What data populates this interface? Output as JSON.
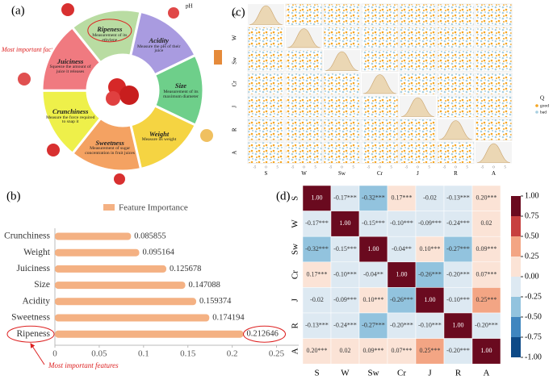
{
  "diagram": {
    "label": "(a)",
    "annotation": "Most important factor",
    "ph_label": "pH",
    "segments": [
      {
        "title": "Ripeness",
        "text": "Measurement of its ethylene"
      },
      {
        "title": "Acidity",
        "text": "Measure the pH of their juice"
      },
      {
        "title": "Size",
        "text": "Measurement of its maximum diameter"
      },
      {
        "title": "Weight",
        "text": "Measure its weight"
      },
      {
        "title": "Sweetness",
        "text": "Measurement of sugar concentration in fruit juices"
      },
      {
        "title": "Crunchiness",
        "text": "Measure the force required to snap it"
      },
      {
        "title": "Juiciness",
        "text": "Squeeze the amount of juice it releases"
      }
    ]
  },
  "chart_data": [
    {
      "type": "bar",
      "orientation": "horizontal",
      "label": "(b)",
      "legend": "Feature Importance",
      "color": "#f4b183",
      "categories": [
        "Crunchiness",
        "Weight",
        "Juiciness",
        "Size",
        "Acidity",
        "Sweetness",
        "Ripeness"
      ],
      "values": [
        0.085855,
        0.095164,
        0.125678,
        0.147088,
        0.159374,
        0.174194,
        0.212646
      ],
      "xlim": [
        0,
        0.275
      ],
      "xticks": [
        0,
        0.05,
        0.1,
        0.15,
        0.2,
        0.25
      ],
      "annotation": "Most important features"
    },
    {
      "type": "scatter-matrix",
      "label": "(c)",
      "variables": [
        "S",
        "W",
        "Sw",
        "Cr",
        "J",
        "R",
        "A"
      ],
      "legend_title": "Q",
      "series": [
        {
          "name": "good",
          "color": "#f5a623"
        },
        {
          "name": "bad",
          "color": "#a8cfe0"
        }
      ],
      "xlim": [
        -8,
        8
      ],
      "xticks": [
        -5,
        0,
        5
      ]
    },
    {
      "type": "heatmap",
      "label": "(d)",
      "variables": [
        "S",
        "W",
        "Sw",
        "Cr",
        "J",
        "R",
        "A"
      ],
      "values": [
        [
          1,
          -0.17,
          -0.32,
          0.17,
          -0.02,
          -0.13,
          0.2
        ],
        [
          -0.17,
          1,
          -0.15,
          -0.1,
          -0.09,
          -0.24,
          0.02
        ],
        [
          -0.32,
          -0.15,
          1,
          -0.04,
          0.1,
          -0.27,
          0.09
        ],
        [
          0.17,
          -0.1,
          -0.04,
          1,
          -0.26,
          -0.2,
          0.07
        ],
        [
          -0.02,
          -0.09,
          0.1,
          -0.26,
          1,
          -0.1,
          0.25
        ],
        [
          -0.13,
          -0.24,
          -0.27,
          -0.2,
          -0.1,
          1,
          -0.2
        ],
        [
          0.2,
          0.02,
          0.09,
          0.07,
          0.25,
          -0.2,
          1
        ]
      ],
      "value_labels": [
        [
          "1.00",
          "-0.17***",
          "-0.32***",
          "0.17***",
          "-0.02",
          "-0.13***",
          "0.20***"
        ],
        [
          "-0.17***",
          "1.00",
          "-0.15***",
          "-0.10***",
          "-0.09***",
          "-0.24***",
          "0.02"
        ],
        [
          "-0.32***",
          "-0.15***",
          "1.00",
          "-0.04**",
          "0.10***",
          "-0.27***",
          "0.09***"
        ],
        [
          "0.17***",
          "-0.10***",
          "-0.04**",
          "1.00",
          "-0.26***",
          "-0.20***",
          "0.07***"
        ],
        [
          "-0.02",
          "-0.09***",
          "0.10***",
          "-0.26***",
          "1.00",
          "-0.10***",
          "0.25***"
        ],
        [
          "-0.13***",
          "-0.24***",
          "-0.27***",
          "-0.20***",
          "-0.10***",
          "1.00",
          "-0.20***"
        ],
        [
          "0.20***",
          "0.02",
          "0.09***",
          "0.07***",
          "0.25***",
          "-0.20***",
          "1.00"
        ]
      ],
      "zlim": [
        -1,
        1
      ],
      "colorbar_colors": [
        "#0d4a87",
        "#3f86bf",
        "#92c3de",
        "#dde9f2",
        "#fbe3d6",
        "#f3a584",
        "#c7403f",
        "#6a0a1f"
      ],
      "colorbar_ticks": [
        {
          "value": 1,
          "label": "1.00"
        },
        {
          "value": 0.75,
          "label": "0.75"
        },
        {
          "value": 0.5,
          "label": "0.50"
        },
        {
          "value": 0.25,
          "label": "0.25"
        },
        {
          "value": 0,
          "label": "0.00"
        },
        {
          "value": -0.25,
          "label": "-0.25"
        },
        {
          "value": -0.5,
          "label": "-0.50"
        },
        {
          "value": -0.75,
          "label": "-0.75"
        },
        {
          "value": -1,
          "label": "-1.00"
        }
      ]
    }
  ]
}
